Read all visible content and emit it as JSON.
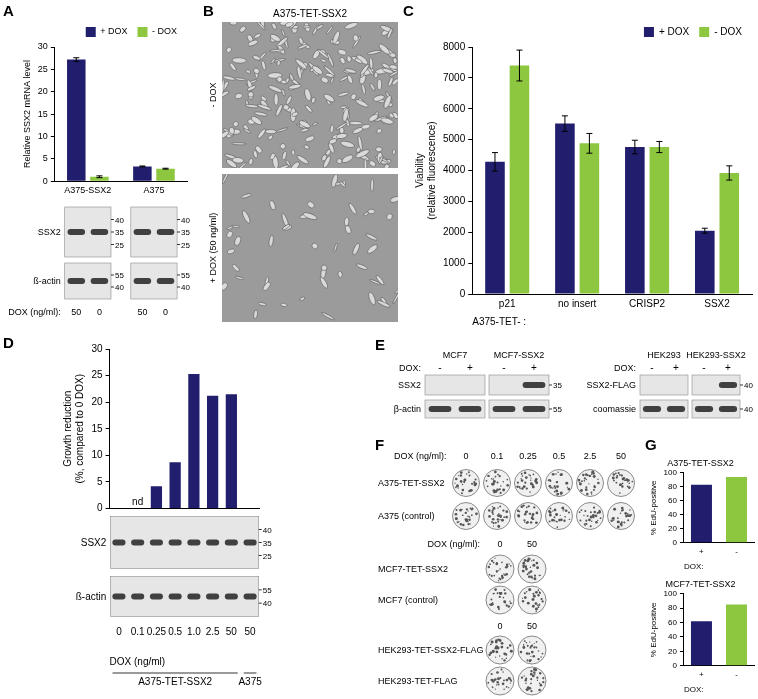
{
  "chart_data": [
    {
      "panel": "A",
      "type": "bar",
      "ylabel": "Relative SSX2 mRNA level",
      "categories": [
        "A375-SSX2",
        "A375"
      ],
      "series": [
        {
          "name": "+ DOX",
          "color": "#221e6e",
          "values": [
            27.2,
            3.3
          ],
          "errors": [
            0.4,
            0.1
          ]
        },
        {
          "name": "- DOX",
          "color": "#8dc63f",
          "values": [
            1.0,
            2.8
          ],
          "errors": [
            0.2,
            0.1
          ]
        }
      ],
      "ylim": [
        0,
        30
      ],
      "yticks": [
        0,
        5,
        10,
        15,
        20,
        25,
        30
      ],
      "grid": false,
      "legend": "top right"
    },
    {
      "panel": "C",
      "type": "bar",
      "ylabel": [
        "Viability",
        "(relative fluorescence)"
      ],
      "xlabel": "A375-TET- :",
      "categories": [
        "p21",
        "no insert",
        "CRISP2",
        "SSX2"
      ],
      "series": [
        {
          "name": "+ DOX",
          "color": "#221e6e",
          "values": [
            4280,
            5520,
            4760,
            2050
          ],
          "errors": [
            300,
            250,
            220,
            80
          ]
        },
        {
          "name": "- DOX",
          "color": "#8dc63f",
          "values": [
            7400,
            4880,
            4760,
            3920
          ],
          "errors": [
            500,
            320,
            180,
            230
          ]
        }
      ],
      "ylim": [
        0,
        8000
      ],
      "yticks": [
        0,
        1000,
        2000,
        3000,
        4000,
        5000,
        6000,
        7000,
        8000
      ],
      "grid": false,
      "legend": "top right"
    },
    {
      "panel": "D",
      "type": "bar",
      "ylabel": [
        "Growth reduction",
        "(%, compared to 0 DOX)"
      ],
      "xlabel": "DOX (ng/ml)",
      "categories": [
        "0",
        "0.1",
        "0.25",
        "0.5",
        "1.0",
        "2.5",
        "50",
        "50"
      ],
      "cell_lines": [
        "A375-TET-SSX2",
        "A375-TET-SSX2",
        "A375-TET-SSX2",
        "A375-TET-SSX2",
        "A375-TET-SSX2",
        "A375-TET-SSX2",
        "A375-TET-SSX2",
        "A375"
      ],
      "values": [
        0,
        null,
        4.2,
        8.7,
        25.3,
        21.2,
        21.5,
        0
      ],
      "color": "#221e6e",
      "annotations": [
        {
          "category": "0.1",
          "text": "nd"
        }
      ],
      "ylim": [
        0,
        30
      ],
      "yticks": [
        0,
        5,
        10,
        15,
        20,
        25,
        30
      ],
      "grid": false
    },
    {
      "panel": "G",
      "type": "bar",
      "title": "A375-TET-SSX2",
      "ylabel": "% EdU-positive",
      "xlabel": "DOX:",
      "categories": [
        "+",
        "-"
      ],
      "values": [
        83,
        94
      ],
      "colors": [
        "#221e6e",
        "#8dc63f"
      ],
      "ylim": [
        0,
        100
      ],
      "yticks": [
        0,
        20,
        40,
        60,
        80,
        100
      ],
      "grid": false
    },
    {
      "type": "bar",
      "title": "MCF7-TET-SSX2",
      "ylabel": "% EdU-positive",
      "xlabel": "DOX:",
      "categories": [
        "+",
        "-"
      ],
      "values": [
        62,
        85
      ],
      "colors": [
        "#221e6e",
        "#8dc63f"
      ],
      "ylim": [
        0,
        100
      ],
      "yticks": [
        0,
        20,
        40,
        60,
        80,
        100
      ],
      "grid": false
    }
  ],
  "blots": {
    "A": {
      "rows": [
        {
          "label": "SSX2",
          "markers": [
            40,
            35,
            25
          ],
          "bands": [
            true,
            true,
            true,
            true
          ]
        },
        {
          "label": "ß-actin",
          "markers": [
            55,
            40
          ],
          "bands": [
            true,
            true,
            true,
            true
          ]
        }
      ],
      "lane_label": "DOX (ng/ml):",
      "lanes": [
        50,
        0,
        50,
        0
      ]
    },
    "D": {
      "rows": [
        {
          "label": "SSX2",
          "markers": [
            40,
            35,
            25
          ],
          "bands": [
            true,
            true,
            true,
            true,
            true,
            true,
            true,
            true
          ]
        },
        {
          "label": "ß-actin",
          "markers": [
            55,
            40
          ],
          "bands": [
            true,
            true,
            true,
            true,
            true,
            true,
            true,
            true
          ]
        }
      ]
    }
  },
  "panel_B": {
    "panel": "B",
    "title": "A375-TET-SSX2",
    "images": [
      "- DOX",
      "+ DOX (50 ng/ml)"
    ]
  },
  "panel_E": {
    "panel": "E",
    "lane_label": "DOX:",
    "blots": [
      {
        "groups": [
          "MCF7",
          "MCF7-SSX2"
        ],
        "lanes": [
          "-",
          "+",
          "-",
          "+"
        ],
        "rows": [
          {
            "label": "SSX2",
            "markers": [
              35
            ],
            "bands": [
              false,
              false,
              false,
              true
            ]
          },
          {
            "label": "β-actin",
            "markers": [
              55
            ],
            "bands": [
              true,
              true,
              true,
              true
            ]
          }
        ]
      },
      {
        "groups": [
          "HEK293",
          "HEK293-SSX2"
        ],
        "lanes": [
          "-",
          "+",
          "-",
          "+"
        ],
        "rows": [
          {
            "label": "SSX2-FLAG",
            "markers": [
              40
            ],
            "bands": [
              false,
              false,
              false,
              true
            ]
          },
          {
            "label": "coomassie",
            "markers": [
              40
            ],
            "bands": [
              true,
              true,
              true,
              true
            ]
          }
        ]
      }
    ]
  },
  "panel_F": {
    "panel": "F",
    "sections": [
      {
        "header": "DOX (ng/ml):",
        "doses": [
          0,
          0.1,
          0.25,
          0.5,
          2.5,
          50
        ],
        "rows": [
          "A375-TET-SSX2",
          "A375 (control)"
        ]
      },
      {
        "header": "DOX (ng/ml):",
        "doses": [
          0,
          50
        ],
        "rows": [
          "MCF7-TET-SSX2",
          "MCF7 (control)"
        ]
      },
      {
        "doses": [
          0,
          50
        ],
        "rows": [
          "HEK293-TET-SSX2-FLAG",
          "HEK293-TET-FLAG"
        ]
      }
    ]
  }
}
